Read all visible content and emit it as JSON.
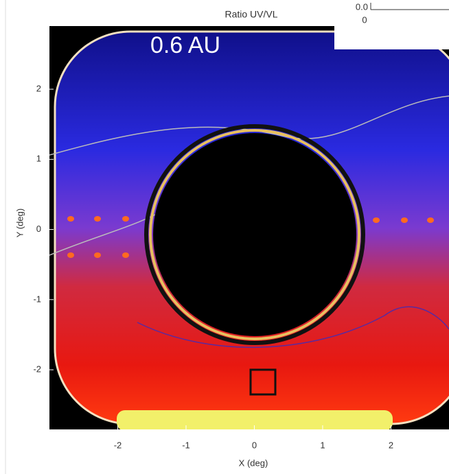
{
  "chart_data": [
    {
      "type": "heatmap",
      "title": "Ratio UV/VL",
      "annotation": "0.6 AU",
      "xlabel": "X (deg)",
      "ylabel": "Y (deg)",
      "xlim": [
        -3,
        2.85
      ],
      "ylim": [
        -2.85,
        2.9
      ],
      "xticks": [
        -2,
        -1,
        0,
        1,
        2
      ],
      "yticks": [
        -2,
        -1,
        0,
        1,
        2
      ]
    },
    {
      "type": "line",
      "xlim": [
        0,
        1
      ],
      "ylim": [
        0,
        1
      ],
      "xticks": [
        0
      ],
      "yticks": [
        {
          "value": 0,
          "label": "0.0"
        }
      ]
    }
  ]
}
